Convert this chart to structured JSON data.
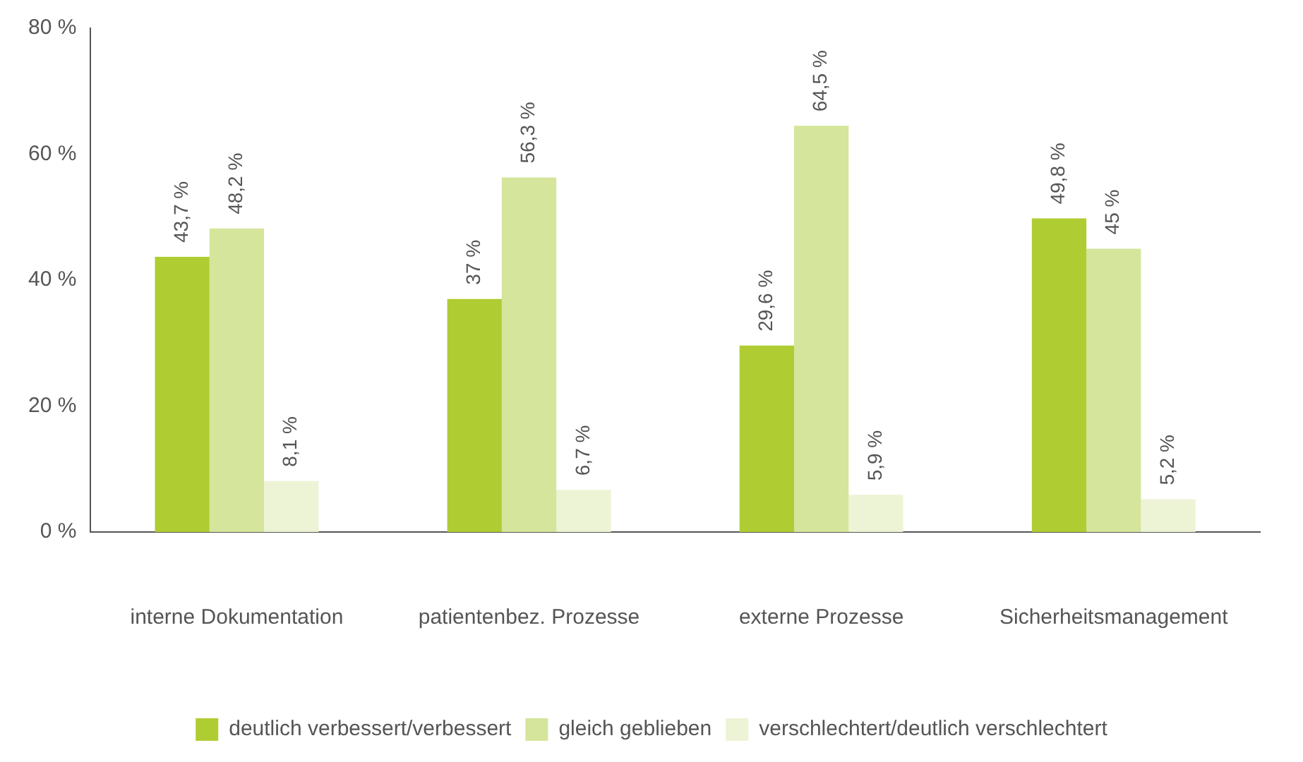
{
  "chart_data": {
    "type": "bar",
    "categories": [
      "interne Dokumentation",
      "patientenbez. Prozesse",
      "externe Prozesse",
      "Sicherheitsmanagement"
    ],
    "series": [
      {
        "name": "deutlich verbessert/verbessert",
        "color": "#afcd32",
        "values": [
          43.7,
          37,
          29.6,
          49.8
        ],
        "value_labels": [
          "43,7 %",
          "37 %",
          "29,6 %",
          "49,8 %"
        ]
      },
      {
        "name": "gleich geblieben",
        "color": "#d5e59b",
        "values": [
          48.2,
          56.3,
          64.5,
          45
        ],
        "value_labels": [
          "48,2 %",
          "56,3 %",
          "64,5 %",
          "45 %"
        ]
      },
      {
        "name": "verschlechtert/deutlich verschlechtert",
        "color": "#edf3d5",
        "values": [
          8.1,
          6.7,
          5.9,
          5.2
        ],
        "value_labels": [
          "8,1 %",
          "6,7 %",
          "5,9 %",
          "5,2 %"
        ]
      }
    ],
    "ylim": [
      0,
      80
    ],
    "yticks": [
      {
        "value": 0,
        "label": "0 %"
      },
      {
        "value": 20,
        "label": "20 %"
      },
      {
        "value": 40,
        "label": "40 %"
      },
      {
        "value": 60,
        "label": "60 %"
      },
      {
        "value": 80,
        "label": "80 %"
      }
    ],
    "grid": false,
    "legend": "bottom"
  }
}
